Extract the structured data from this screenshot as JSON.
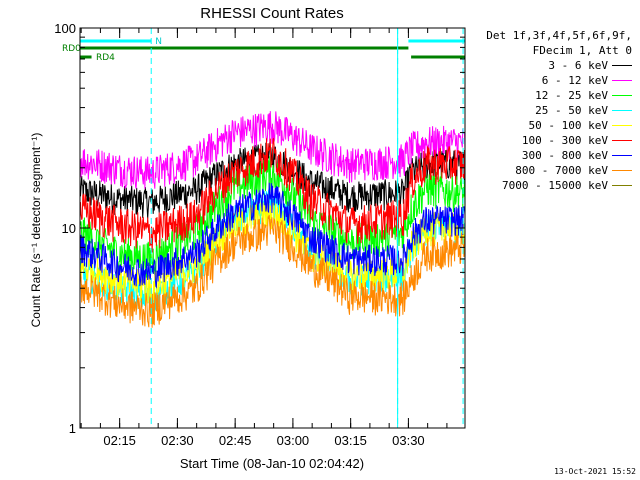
{
  "chart_data": {
    "type": "line",
    "title": "RHESSI Count Rates",
    "xlabel": "Start Time (08-Jan-10 02:04:42)",
    "ylabel": "Count Rate (s⁻¹ detector segment⁻¹)",
    "yscale": "log",
    "ylim": [
      1,
      100
    ],
    "y_tick_labels": [
      "1",
      "10",
      "100"
    ],
    "xlim_minutes": [
      0,
      100
    ],
    "x_ticks": [
      {
        "label": "02:15",
        "minute": 10.3
      },
      {
        "label": "02:30",
        "minute": 25.3
      },
      {
        "label": "02:45",
        "minute": 40.3
      },
      {
        "label": "03:00",
        "minute": 55.3
      },
      {
        "label": "03:15",
        "minute": 70.3
      },
      {
        "label": "03:30",
        "minute": 85.3
      }
    ],
    "x": [
      0,
      10,
      18.5,
      30,
      40,
      50,
      60,
      70,
      84,
      86,
      90,
      100
    ],
    "series": [
      {
        "name": "3 - 6 keV",
        "color": "#000000",
        "values": [
          15.5,
          14.0,
          13.5,
          15.5,
          21,
          23,
          17,
          14.5,
          15,
          19,
          21,
          21
        ]
      },
      {
        "name": "6 - 12 keV",
        "color": "#ff00ff",
        "values": [
          22,
          20,
          19,
          22,
          30,
          33,
          25,
          21,
          22,
          25,
          27,
          27
        ]
      },
      {
        "name": "12 - 25 keV",
        "color": "#00ff00",
        "values": [
          9.5,
          7.5,
          7.0,
          9.5,
          16,
          19,
          11,
          8.5,
          9.5,
          12.5,
          16,
          15
        ]
      },
      {
        "name": "25 - 50 keV",
        "color": "#00ffff",
        "values": [
          6.0,
          5.0,
          4.5,
          6.0,
          11,
          13.5,
          7.5,
          5.5,
          5.8,
          8,
          10,
          10
        ]
      },
      {
        "name": "50 - 100 keV",
        "color": "#ffff00",
        "values": [
          6.5,
          5.5,
          5.0,
          6.5,
          10.5,
          12,
          7.5,
          5.8,
          6.0,
          8,
          10,
          10
        ]
      },
      {
        "name": "100 - 300 keV",
        "color": "#ff0000",
        "values": [
          12.5,
          10.5,
          9.5,
          11.5,
          19,
          24,
          14,
          10.5,
          11.5,
          17,
          21,
          21
        ]
      },
      {
        "name": "300 - 800 keV",
        "color": "#0000ff",
        "values": [
          8.0,
          6.5,
          6.0,
          7.5,
          12,
          14.5,
          9,
          7.0,
          7.0,
          9,
          11,
          11
        ]
      },
      {
        "name": "800 - 7000 keV",
        "color": "#ff8800",
        "values": [
          5.2,
          4.2,
          3.9,
          5.0,
          8.5,
          10,
          6.5,
          4.6,
          4.5,
          5.5,
          7.5,
          8.0
        ]
      },
      {
        "name": "7000 - 15000 keV",
        "color": "#808000",
        "values": [
          null,
          null,
          null,
          null,
          null,
          null,
          null,
          null,
          null,
          null,
          null,
          null
        ]
      }
    ],
    "dashed_vlines_minutes": [
      18.5,
      82.5,
      99.5
    ],
    "night_bars": [
      {
        "label": "N",
        "row": "N",
        "start": 0,
        "end": 18.5,
        "color": "#00ffff"
      },
      {
        "row": "N",
        "start": 85.3,
        "end": 100,
        "color": "#00ffff"
      }
    ],
    "attenuator_bars": [
      {
        "label": "RD0",
        "row": "RD0",
        "start": 0,
        "end": 85.3,
        "color": "#008000"
      },
      {
        "label": "RD4",
        "row": "RD4",
        "start": 0,
        "end": 3.0,
        "color": "#008000"
      },
      {
        "row": "RD4",
        "start": 86,
        "end": 100,
        "color": "#008000"
      }
    ],
    "solid_vlines_minutes": [
      0,
      82.5
    ],
    "legend": {
      "header": [
        "Det 1f,3f,4f,5f,6f,9f,",
        "FDecim 1, Att 0"
      ],
      "placement": "right"
    }
  },
  "timestamp": "13-Oct-2021 15:52"
}
